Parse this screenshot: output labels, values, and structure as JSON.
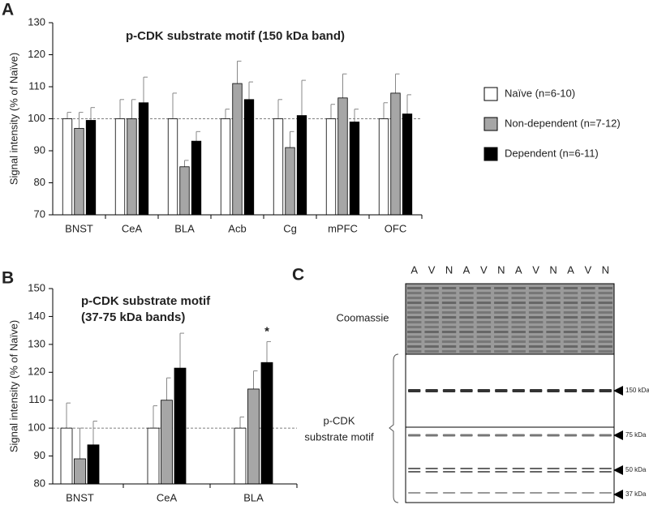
{
  "panel_labels": [
    "A",
    "B",
    "C"
  ],
  "chart_data": [
    {
      "type": "bar",
      "title": "p-CDK substrate motif (150 kDa band)",
      "ylabel": "Signal intensity (% of Naïve)",
      "categories": [
        "BNST",
        "CeA",
        "BLA",
        "Acb",
        "Cg",
        "mPFC",
        "OFC"
      ],
      "series": [
        {
          "name": "Naïve (n=6-10)",
          "color": "#ffffff",
          "values": [
            100,
            100,
            100,
            100,
            100,
            100,
            100
          ],
          "errors": [
            2,
            6,
            8,
            3,
            6,
            4.5,
            5
          ]
        },
        {
          "name": "Non-dependent (n=7-12)",
          "color": "#a6a6a6",
          "values": [
            97,
            100,
            85,
            111,
            91,
            106.5,
            108
          ],
          "errors": [
            5,
            6,
            2,
            7,
            5,
            7.5,
            6
          ]
        },
        {
          "name": "Dependent (n=6-11)",
          "color": "#000000",
          "values": [
            99.5,
            105,
            93,
            106,
            101,
            99,
            101.5
          ],
          "errors": [
            4,
            8,
            3,
            5.5,
            11,
            4,
            6
          ]
        }
      ],
      "ylim": [
        70,
        130
      ],
      "yticks": [
        70,
        80,
        90,
        100,
        110,
        120,
        130
      ],
      "reference_line": 100,
      "legend": "right"
    },
    {
      "type": "bar",
      "title": [
        "p-CDK substrate motif",
        "(37-75 kDa bands)"
      ],
      "ylabel": "Signal intensity (% of Naïve)",
      "categories": [
        "BNST",
        "CeA",
        "BLA"
      ],
      "series": [
        {
          "color": "#ffffff",
          "values": [
            100,
            100,
            100
          ],
          "errors": [
            9,
            8,
            4
          ]
        },
        {
          "color": "#a6a6a6",
          "values": [
            89,
            110,
            114
          ],
          "errors": [
            11,
            8,
            6.5
          ]
        },
        {
          "color": "#000000",
          "values": [
            94,
            121.5,
            123.5
          ],
          "errors": [
            8.5,
            12.5,
            7.5
          ]
        }
      ],
      "ylim": [
        80,
        150
      ],
      "yticks": [
        80,
        90,
        100,
        110,
        120,
        130,
        140,
        150
      ],
      "reference_line": 100,
      "annotations": [
        {
          "text": "*",
          "category": "BLA"
        }
      ]
    }
  ],
  "blot": {
    "lanes": [
      "A",
      "V",
      "N",
      "A",
      "V",
      "N",
      "A",
      "V",
      "N",
      "A",
      "V",
      "N"
    ],
    "stain": "Coomassie",
    "antibody": [
      "p-CDK",
      "substrate motif"
    ],
    "markers": [
      "150 kDa",
      "75 kDa",
      "50 kDa",
      "37 kDa"
    ]
  }
}
